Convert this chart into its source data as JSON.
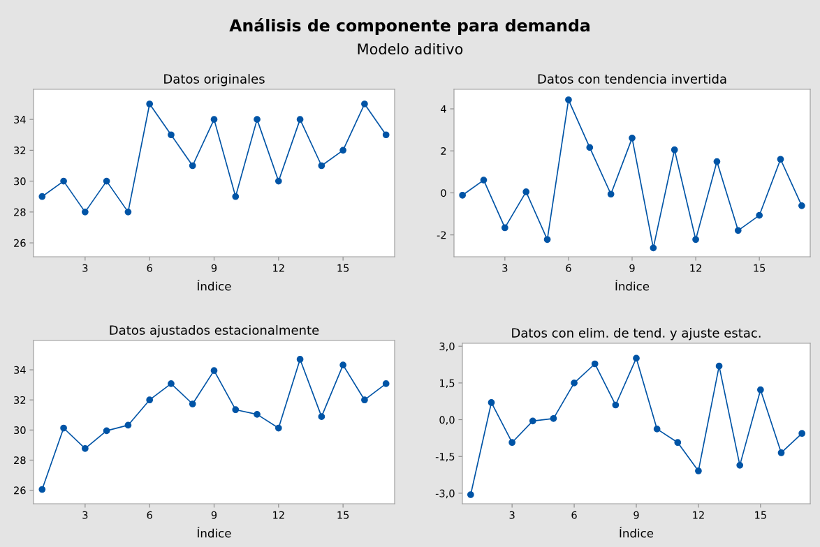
{
  "chart_data": [
    {
      "type": "line",
      "title": "Datos originales",
      "xlabel": "Índice",
      "annotations": [
        "Análisis de componente para demanda",
        "Modelo aditivo"
      ],
      "marker": "circle",
      "line_style": "solid",
      "grid": false,
      "legend": false,
      "x": [
        1,
        2,
        3,
        4,
        5,
        6,
        7,
        8,
        9,
        10,
        11,
        12,
        13,
        14,
        15,
        16,
        17
      ],
      "xlim": [
        0.6,
        17.4
      ],
      "xticks": [
        3,
        6,
        9,
        12,
        15
      ],
      "ylim": [
        25.1,
        35.95
      ],
      "yticks": [
        26,
        28,
        30,
        32,
        34
      ],
      "series": [
        {
          "color": "#0054a6",
          "values": [
            29,
            30,
            28,
            30,
            28,
            35,
            33,
            31,
            34,
            29,
            34,
            30,
            34,
            31,
            32,
            35,
            33
          ]
        }
      ]
    },
    {
      "type": "line",
      "title": "Datos con tendencia invertida",
      "xlabel": "Índice",
      "marker": "circle",
      "line_style": "solid",
      "grid": false,
      "legend": false,
      "x": [
        1,
        2,
        3,
        4,
        5,
        6,
        7,
        8,
        9,
        10,
        11,
        12,
        13,
        14,
        15,
        16,
        17
      ],
      "xlim": [
        0.6,
        17.4
      ],
      "xticks": [
        3,
        6,
        9,
        12,
        15
      ],
      "ylim": [
        -3.04,
        4.93
      ],
      "yticks": [
        {
          "value": -2,
          "label": "-2"
        },
        0,
        2,
        4
      ],
      "series": [
        {
          "color": "#0054a6",
          "values": [
            -0.11,
            0.61,
            -1.66,
            0.05,
            -2.22,
            4.43,
            2.16,
            -0.06,
            2.61,
            -2.62,
            2.05,
            -2.22,
            1.49,
            -1.79,
            -1.07,
            1.6,
            -0.61
          ]
        }
      ]
    },
    {
      "type": "line",
      "title": "Datos ajustados estacionalmente",
      "xlabel": "Índice",
      "marker": "circle",
      "line_style": "solid",
      "grid": false,
      "legend": false,
      "x": [
        1,
        2,
        3,
        4,
        5,
        6,
        7,
        8,
        9,
        10,
        11,
        12,
        13,
        14,
        15,
        16,
        17
      ],
      "xlim": [
        0.6,
        17.4
      ],
      "xticks": [
        3,
        6,
        9,
        12,
        15
      ],
      "ylim": [
        25.1,
        35.95
      ],
      "yticks": [
        26,
        28,
        30,
        32,
        34
      ],
      "series": [
        {
          "color": "#0054a6",
          "values": [
            26.05,
            30.13,
            28.77,
            29.95,
            30.32,
            32.0,
            33.08,
            31.73,
            33.95,
            31.35,
            31.04,
            30.13,
            34.7,
            30.89,
            34.32,
            32.0,
            33.08
          ]
        }
      ]
    },
    {
      "type": "line",
      "title": "Datos con elim. de tend. y ajuste estac.",
      "xlabel": "Índice",
      "marker": "circle",
      "line_style": "solid",
      "grid": false,
      "legend": false,
      "x": [
        1,
        2,
        3,
        4,
        5,
        6,
        7,
        8,
        9,
        10,
        11,
        12,
        13,
        14,
        15,
        16,
        17
      ],
      "xlim": [
        0.6,
        17.4
      ],
      "xticks": [
        3,
        6,
        9,
        12,
        15
      ],
      "ylim": [
        -3.43,
        3.12
      ],
      "yticks": [
        {
          "value": -3,
          "label": "-3,0"
        },
        {
          "value": -1.5,
          "label": "-1,5"
        },
        {
          "value": 0,
          "label": "0,0"
        },
        {
          "value": 1.5,
          "label": "1,5"
        },
        {
          "value": 3,
          "label": "3,0"
        }
      ],
      "series": [
        {
          "color": "#0054a6",
          "values": [
            -3.06,
            0.7,
            -0.93,
            -0.05,
            0.05,
            1.5,
            2.28,
            0.6,
            2.51,
            -0.38,
            -0.93,
            -2.09,
            2.19,
            -1.86,
            1.22,
            -1.35,
            -0.56
          ]
        }
      ]
    }
  ]
}
